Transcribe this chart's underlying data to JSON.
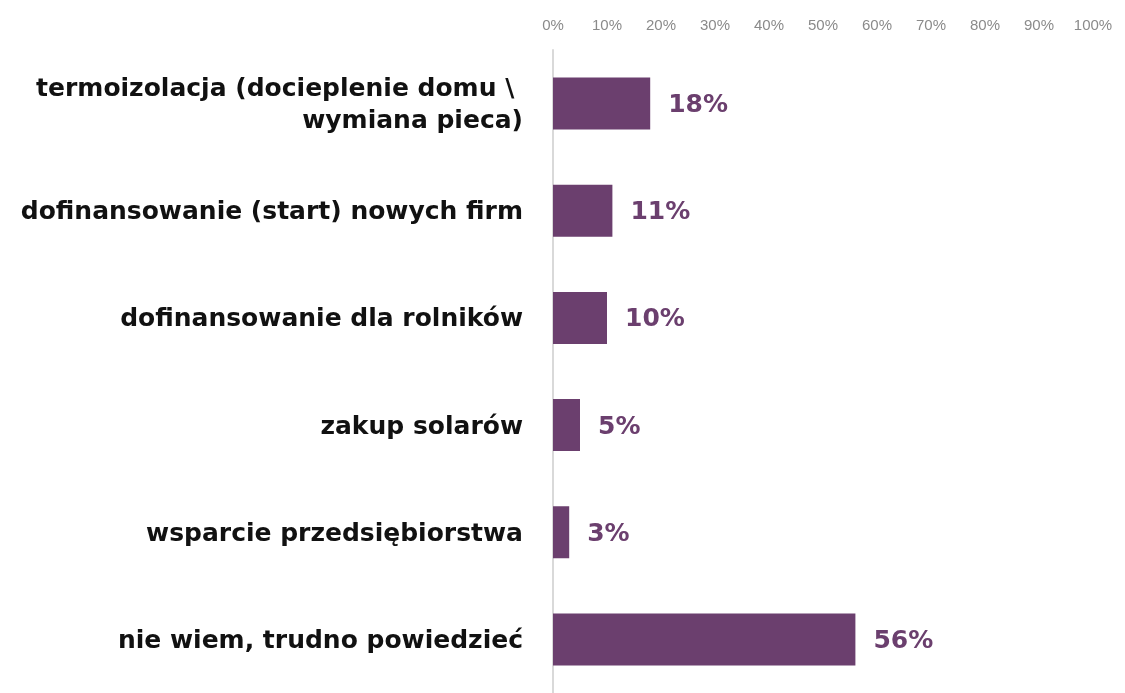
{
  "chart_data": {
    "type": "bar",
    "orientation": "horizontal",
    "categories": [
      "termoizolacja (docieplenie domu \\ wymiana pieca)",
      "dofinansowanie (start) nowych firm",
      "dofinansowanie dla rolników",
      "zakup solarów",
      "wsparcie przedsiębiorstwa",
      "nie wiem, trudno powiedzieć"
    ],
    "values": [
      18,
      11,
      10,
      5,
      3,
      56
    ],
    "value_labels": [
      "18%",
      "11%",
      "10%",
      "5%",
      "3%",
      "56%"
    ],
    "color": "#6b3f6e",
    "xlim": [
      0,
      100
    ],
    "xticks": [
      {
        "value": 0,
        "label": "0%"
      },
      {
        "value": 10,
        "label": "10%"
      },
      {
        "value": 20,
        "label": "20%"
      },
      {
        "value": 30,
        "label": "30%"
      },
      {
        "value": 40,
        "label": "40%"
      },
      {
        "value": 50,
        "label": "50%"
      },
      {
        "value": 60,
        "label": "60%"
      },
      {
        "value": 70,
        "label": "70%"
      },
      {
        "value": 80,
        "label": "80%"
      },
      {
        "value": 90,
        "label": "90%"
      },
      {
        "value": 100,
        "label": "100%"
      }
    ],
    "grid": false
  }
}
